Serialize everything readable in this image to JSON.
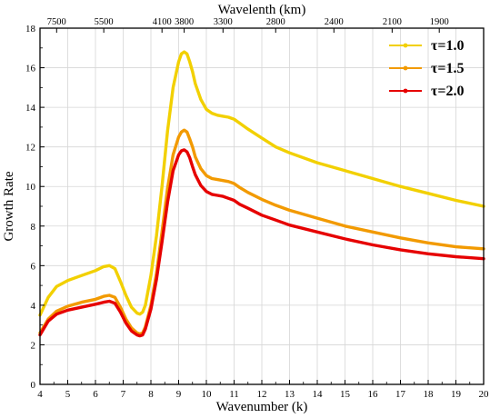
{
  "chart_data": {
    "type": "line",
    "xlabel": "Wavenumber (k)",
    "ylabel": "Growth Rate",
    "top_xlabel": "Wavelenth (km)",
    "xlim": [
      4,
      20
    ],
    "ylim": [
      0,
      18
    ],
    "x_ticks": [
      4,
      5,
      6,
      7,
      8,
      9,
      10,
      11,
      12,
      13,
      14,
      15,
      16,
      17,
      18,
      19,
      20
    ],
    "y_ticks": [
      0,
      2,
      4,
      6,
      8,
      10,
      12,
      14,
      16,
      18
    ],
    "top_ticks": [
      {
        "k": 4.6,
        "label": "7500"
      },
      {
        "k": 6.3,
        "label": "5500"
      },
      {
        "k": 8.4,
        "label": "4100"
      },
      {
        "k": 9.2,
        "label": "3800"
      },
      {
        "k": 10.6,
        "label": "3300"
      },
      {
        "k": 12.5,
        "label": "2800"
      },
      {
        "k": 14.6,
        "label": "2400"
      },
      {
        "k": 16.7,
        "label": "2100"
      },
      {
        "k": 18.4,
        "label": "1900"
      }
    ],
    "grid": true,
    "legend_position": "top-right",
    "series": [
      {
        "name": "τ=1.0",
        "color": "#f2d000",
        "x": [
          4.0,
          4.3,
          4.6,
          5.0,
          5.5,
          6.0,
          6.3,
          6.5,
          6.7,
          6.9,
          7.1,
          7.3,
          7.5,
          7.6,
          7.7,
          7.8,
          8.0,
          8.2,
          8.4,
          8.6,
          8.8,
          9.0,
          9.1,
          9.2,
          9.3,
          9.4,
          9.5,
          9.6,
          9.8,
          10.0,
          10.2,
          10.4,
          10.6,
          10.8,
          11.0,
          11.2,
          11.5,
          12.0,
          12.5,
          13.0,
          14.0,
          15.0,
          16.0,
          17.0,
          18.0,
          19.0,
          20.0
        ],
        "values": [
          3.5,
          4.4,
          4.95,
          5.25,
          5.5,
          5.75,
          5.95,
          6.0,
          5.85,
          5.2,
          4.5,
          3.9,
          3.6,
          3.55,
          3.65,
          4.0,
          5.5,
          7.5,
          10.0,
          12.8,
          15.0,
          16.3,
          16.7,
          16.8,
          16.7,
          16.3,
          15.8,
          15.2,
          14.4,
          13.9,
          13.7,
          13.6,
          13.55,
          13.5,
          13.4,
          13.2,
          12.9,
          12.45,
          12.0,
          11.7,
          11.2,
          10.8,
          10.4,
          10.0,
          9.65,
          9.3,
          9.0
        ]
      },
      {
        "name": "τ=1.5",
        "color": "#f29a00",
        "x": [
          4.0,
          4.3,
          4.6,
          5.0,
          5.5,
          6.0,
          6.3,
          6.5,
          6.7,
          6.9,
          7.1,
          7.3,
          7.5,
          7.6,
          7.7,
          7.8,
          8.0,
          8.2,
          8.4,
          8.6,
          8.8,
          9.0,
          9.1,
          9.2,
          9.3,
          9.4,
          9.5,
          9.6,
          9.8,
          10.0,
          10.2,
          10.4,
          10.6,
          10.8,
          11.0,
          11.2,
          11.5,
          12.0,
          12.5,
          13.0,
          14.0,
          15.0,
          16.0,
          17.0,
          18.0,
          19.0,
          20.0
        ],
        "values": [
          2.6,
          3.3,
          3.7,
          3.95,
          4.15,
          4.3,
          4.45,
          4.5,
          4.4,
          3.9,
          3.3,
          2.85,
          2.6,
          2.55,
          2.6,
          2.9,
          4.0,
          5.6,
          7.7,
          9.9,
          11.6,
          12.5,
          12.75,
          12.85,
          12.75,
          12.4,
          12.0,
          11.5,
          10.9,
          10.55,
          10.4,
          10.35,
          10.3,
          10.25,
          10.15,
          9.95,
          9.7,
          9.35,
          9.05,
          8.8,
          8.4,
          8.0,
          7.7,
          7.4,
          7.15,
          6.95,
          6.85
        ]
      },
      {
        "name": "τ=2.0",
        "color": "#e60000",
        "x": [
          4.0,
          4.3,
          4.6,
          5.0,
          5.5,
          6.0,
          6.3,
          6.5,
          6.7,
          6.9,
          7.1,
          7.3,
          7.5,
          7.6,
          7.7,
          7.8,
          8.0,
          8.2,
          8.4,
          8.6,
          8.8,
          9.0,
          9.1,
          9.2,
          9.3,
          9.4,
          9.5,
          9.6,
          9.8,
          10.0,
          10.2,
          10.4,
          10.6,
          10.8,
          11.0,
          11.2,
          11.5,
          12.0,
          12.5,
          13.0,
          14.0,
          15.0,
          16.0,
          17.0,
          18.0,
          19.0,
          20.0
        ],
        "values": [
          2.5,
          3.2,
          3.55,
          3.75,
          3.9,
          4.05,
          4.15,
          4.2,
          4.1,
          3.65,
          3.1,
          2.7,
          2.5,
          2.45,
          2.5,
          2.8,
          3.8,
          5.3,
          7.2,
          9.2,
          10.8,
          11.6,
          11.8,
          11.85,
          11.75,
          11.45,
          11.0,
          10.6,
          10.05,
          9.75,
          9.6,
          9.55,
          9.5,
          9.4,
          9.3,
          9.1,
          8.9,
          8.55,
          8.3,
          8.05,
          7.7,
          7.35,
          7.05,
          6.8,
          6.6,
          6.45,
          6.35
        ]
      }
    ]
  }
}
